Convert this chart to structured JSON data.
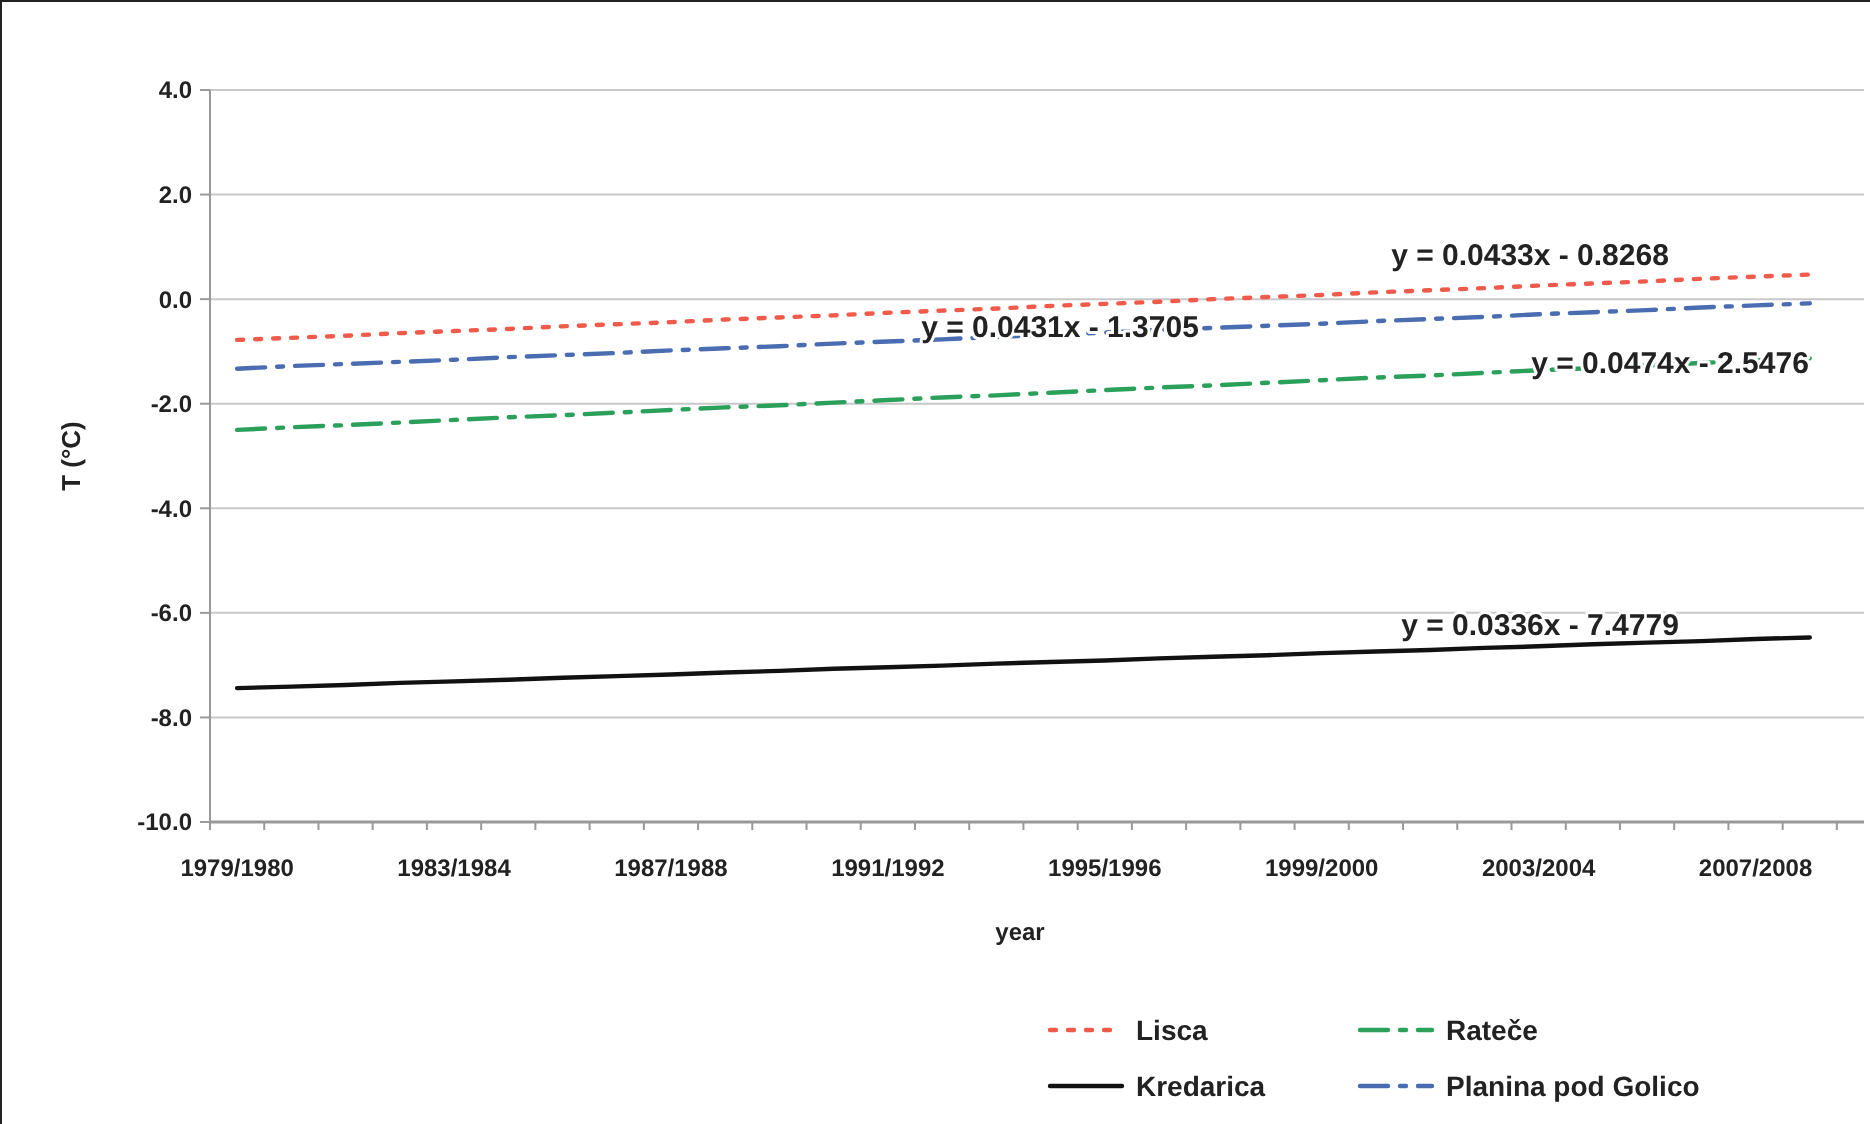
{
  "chart_data": {
    "type": "line",
    "ylabel": "T (°C)",
    "xlabel": "year",
    "categories": [
      "1979/1980",
      null,
      null,
      null,
      "1983/1984",
      null,
      null,
      null,
      "1987/1988",
      null,
      null,
      null,
      "1991/1992",
      null,
      null,
      null,
      "1995/1996",
      null,
      null,
      null,
      "1999/2000",
      null,
      null,
      null,
      "2003/2004",
      null,
      null,
      null,
      "2007/2008",
      null
    ],
    "ylim": [
      -10,
      4
    ],
    "yticks": [
      {
        "value": -10,
        "label": "-10.0"
      },
      {
        "value": -8,
        "label": "-8.0"
      },
      {
        "value": -6,
        "label": "-6.0"
      },
      {
        "value": -4,
        "label": "-4.0"
      },
      {
        "value": -2,
        "label": "-2.0"
      },
      {
        "value": 0,
        "label": "0.0"
      },
      {
        "value": 2,
        "label": "2.0"
      },
      {
        "value": 4,
        "label": "4.0"
      }
    ],
    "grid": "y",
    "legend": "bottom",
    "marker": "none",
    "series": [
      {
        "name": "Lisca",
        "color": "#f05a4a",
        "line_style": "dotted",
        "values": [
          -0.78,
          -0.74,
          -0.7,
          -0.65,
          -0.61,
          -0.57,
          -0.52,
          -0.48,
          -0.44,
          -0.39,
          -0.35,
          -0.31,
          -0.26,
          -0.22,
          -0.18,
          -0.13,
          -0.09,
          -0.05,
          0.0,
          0.04,
          0.08,
          0.13,
          0.17,
          0.21,
          0.26,
          0.3,
          0.34,
          0.39,
          0.43,
          0.47
        ]
      },
      {
        "name": "Rateče",
        "color": "#2aa05a",
        "line_style": "dashdot",
        "values": [
          -2.5,
          -2.45,
          -2.41,
          -2.36,
          -2.31,
          -2.26,
          -2.22,
          -2.17,
          -2.12,
          -2.07,
          -2.03,
          -1.98,
          -1.93,
          -1.88,
          -1.84,
          -1.79,
          -1.74,
          -1.69,
          -1.65,
          -1.6,
          -1.55,
          -1.5,
          -1.46,
          -1.41,
          -1.36,
          -1.32,
          -1.27,
          -1.22,
          -1.17,
          -1.13
        ]
      },
      {
        "name": "Kredarica",
        "color": "#111111",
        "line_style": "solid",
        "values": [
          -7.44,
          -7.41,
          -7.38,
          -7.34,
          -7.31,
          -7.28,
          -7.24,
          -7.21,
          -7.18,
          -7.14,
          -7.11,
          -7.07,
          -7.04,
          -7.01,
          -6.97,
          -6.94,
          -6.91,
          -6.87,
          -6.84,
          -6.81,
          -6.77,
          -6.74,
          -6.71,
          -6.67,
          -6.64,
          -6.6,
          -6.57,
          -6.54,
          -6.5,
          -6.47
        ]
      },
      {
        "name": "Planina pod Golico",
        "color": "#4a6cb0",
        "line_style": "dashdot",
        "values": [
          -1.33,
          -1.28,
          -1.24,
          -1.2,
          -1.16,
          -1.11,
          -1.07,
          -1.03,
          -0.98,
          -0.94,
          -0.9,
          -0.85,
          -0.81,
          -0.77,
          -0.72,
          -0.68,
          -0.64,
          -0.59,
          -0.55,
          -0.51,
          -0.47,
          -0.42,
          -0.38,
          -0.34,
          -0.29,
          -0.25,
          -0.21,
          -0.16,
          -0.12,
          -0.08
        ]
      }
    ],
    "annotations": [
      "y = 0.0433x - 0.8268",
      "y = 0.0431x - 1.3705",
      "y = 0.0474x - 2.5476",
      "y = 0.0336x - 7.4779"
    ]
  }
}
